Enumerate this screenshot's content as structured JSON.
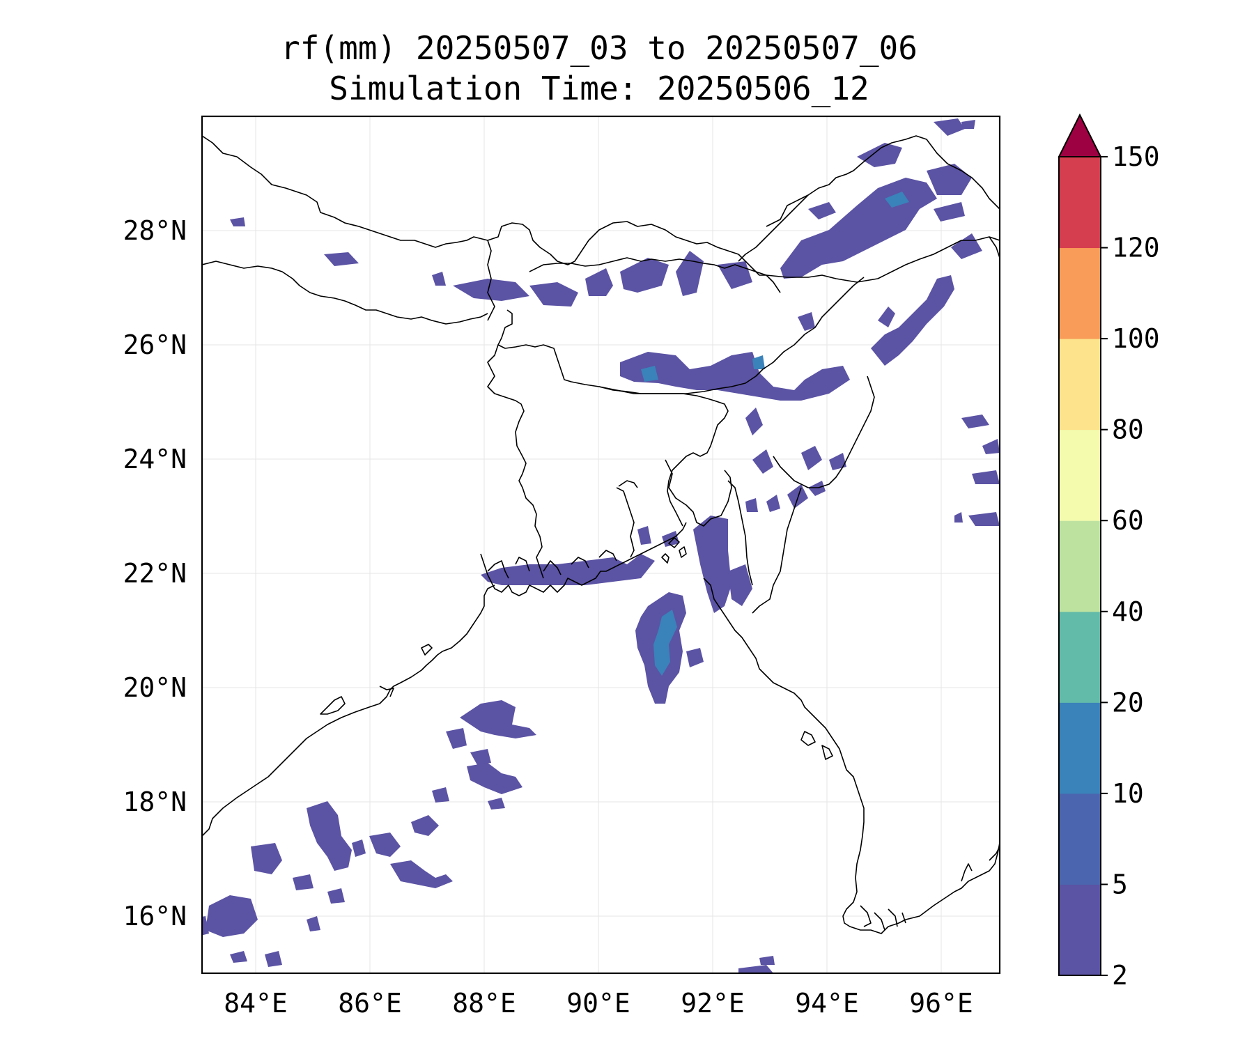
{
  "title": {
    "line1": "rf(mm) 20250507_03 to 20250507_06",
    "line2": "Simulation Time: 20250506_12"
  },
  "map": {
    "lon_range": [
      83.0,
      97.0
    ],
    "lat_range": [
      15.0,
      30.0
    ],
    "x_ticks": [
      "84°E",
      "86°E",
      "88°E",
      "90°E",
      "92°E",
      "94°E",
      "96°E"
    ],
    "y_ticks": [
      "16°N",
      "18°N",
      "20°N",
      "22°N",
      "24°N",
      "26°N",
      "28°N"
    ],
    "gridlines": true,
    "coastline_color": "#000000"
  },
  "colorbar": {
    "levels": [
      "2",
      "5",
      "10",
      "20",
      "40",
      "60",
      "80",
      "100",
      "120",
      "150"
    ],
    "colors": [
      "#5b53a4",
      "#4b65ae",
      "#3a82ba",
      "#62bba9",
      "#bde2a0",
      "#f4fbad",
      "#fde38c",
      "#f99c59",
      "#d53e4f",
      "#9e0142"
    ],
    "extend": "max"
  }
}
